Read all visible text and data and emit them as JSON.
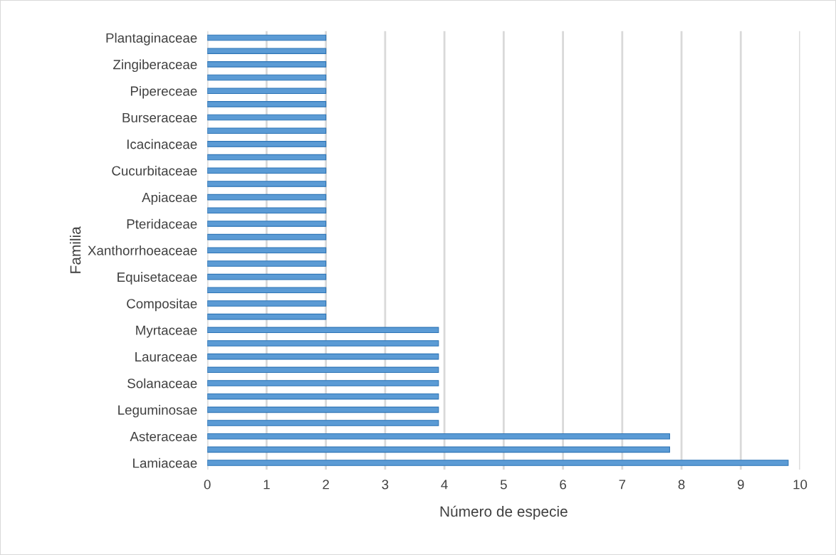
{
  "chart_data": {
    "type": "bar",
    "orientation": "horizontal",
    "xlabel": "Número de especie",
    "ylabel": "Familia",
    "categories": [
      "Plantaginaceae",
      null,
      "Zingiberaceae",
      null,
      "Pipereceae",
      null,
      "Burseraceae",
      null,
      "Icacinaceae",
      null,
      "Cucurbitaceae",
      null,
      "Apiaceae",
      null,
      "Pteridaceae",
      null,
      "Xanthorrhoeaceae",
      null,
      "Equisetaceae",
      null,
      "Compositae",
      null,
      "Myrtaceae",
      null,
      "Lauraceae",
      null,
      "Solanaceae",
      null,
      "Leguminosae",
      null,
      "Asteraceae",
      null,
      "Lamiaceae"
    ],
    "values": [
      2.0,
      2.0,
      2.0,
      2.0,
      2.0,
      2.0,
      2.0,
      2.0,
      2.0,
      2.0,
      2.0,
      2.0,
      2.0,
      2.0,
      2.0,
      2.0,
      2.0,
      2.0,
      2.0,
      2.0,
      2.0,
      2.0,
      3.9,
      3.9,
      3.9,
      3.9,
      3.9,
      3.9,
      3.9,
      3.9,
      7.8,
      7.8,
      9.8
    ],
    "color": "#5b9bd5",
    "xlim": [
      0,
      10
    ],
    "xticks": [
      0,
      1,
      2,
      3,
      4,
      5,
      6,
      7,
      8,
      9,
      10
    ],
    "grid": "x"
  }
}
